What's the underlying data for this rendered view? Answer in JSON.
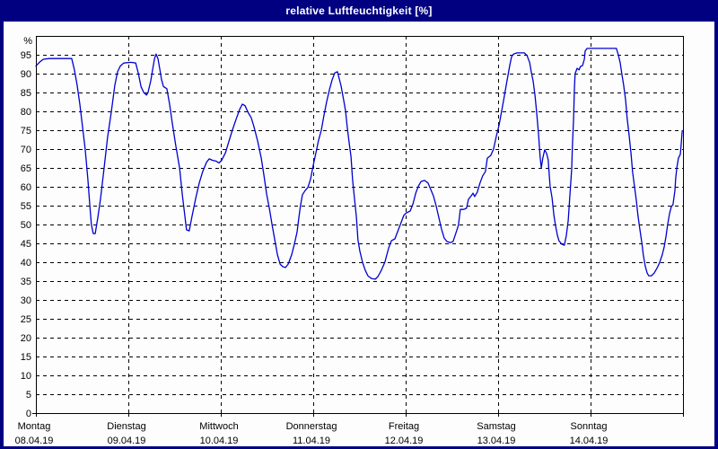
{
  "window": {
    "title": "relative Luftfeuchtigkeit [%]"
  },
  "colors": {
    "titlebar_bg": "#000080",
    "frame_border": "#000080",
    "title_text": "#ffffff",
    "plot_bg": "#fdfdfd",
    "line": "#0000d0",
    "grid": "#000000",
    "axis": "#000000",
    "label_text": "#000000"
  },
  "chart_data": {
    "type": "line",
    "title": "relative Luftfeuchtigkeit [%]",
    "ylabel": "%",
    "ylim": [
      0,
      100
    ],
    "y_ticks": [
      0,
      5,
      10,
      15,
      20,
      25,
      30,
      35,
      40,
      45,
      50,
      55,
      60,
      65,
      70,
      75,
      80,
      85,
      90,
      95
    ],
    "grid": "dashed-both-axes",
    "legend": "none",
    "x_total_hours": 168,
    "x_days": [
      {
        "name": "Montag",
        "date": "08.04.19"
      },
      {
        "name": "Dienstag",
        "date": "09.04.19"
      },
      {
        "name": "Mittwoch",
        "date": "10.04.19"
      },
      {
        "name": "Donnerstag",
        "date": "11.04.19"
      },
      {
        "name": "Freitag",
        "date": "12.04.19"
      },
      {
        "name": "Samstag",
        "date": "13.04.19"
      },
      {
        "name": "Sonntag",
        "date": "14.04.19"
      }
    ],
    "series": [
      {
        "name": "relative Luftfeuchtigkeit",
        "unit": "%",
        "points": [
          [
            0.0,
            92
          ],
          [
            0.9,
            93
          ],
          [
            1.9,
            93.8
          ],
          [
            3.5,
            94
          ],
          [
            9.3,
            94
          ],
          [
            10.0,
            91
          ],
          [
            10.7,
            87
          ],
          [
            11.4,
            82
          ],
          [
            12.1,
            76
          ],
          [
            12.8,
            70
          ],
          [
            13.5,
            62
          ],
          [
            14.0,
            55
          ],
          [
            14.4,
            50
          ],
          [
            14.9,
            47.6
          ],
          [
            15.4,
            47.6
          ],
          [
            16.1,
            52
          ],
          [
            16.8,
            57
          ],
          [
            17.7,
            65
          ],
          [
            18.6,
            73
          ],
          [
            19.6,
            80
          ],
          [
            20.5,
            87
          ],
          [
            21.2,
            90.5
          ],
          [
            21.9,
            92
          ],
          [
            22.8,
            92.8
          ],
          [
            24.7,
            93
          ],
          [
            25.9,
            92.8
          ],
          [
            26.6,
            90
          ],
          [
            27.3,
            86.5
          ],
          [
            28.0,
            85
          ],
          [
            28.7,
            84.3
          ],
          [
            29.1,
            85
          ],
          [
            29.8,
            88
          ],
          [
            30.3,
            91
          ],
          [
            30.8,
            94
          ],
          [
            31.2,
            95.2
          ],
          [
            31.7,
            94
          ],
          [
            32.2,
            91
          ],
          [
            32.6,
            88.5
          ],
          [
            33.1,
            86.6
          ],
          [
            34.0,
            86
          ],
          [
            34.7,
            82
          ],
          [
            35.4,
            77
          ],
          [
            36.3,
            71
          ],
          [
            37.3,
            65
          ],
          [
            38.0,
            58
          ],
          [
            38.7,
            52
          ],
          [
            39.1,
            48.6
          ],
          [
            39.8,
            48.3
          ],
          [
            40.5,
            52
          ],
          [
            41.5,
            57
          ],
          [
            42.4,
            61
          ],
          [
            43.3,
            64
          ],
          [
            44.3,
            66.5
          ],
          [
            45.0,
            67.4
          ],
          [
            45.9,
            67
          ],
          [
            46.8,
            66.8
          ],
          [
            47.5,
            66.3
          ],
          [
            48.2,
            67
          ],
          [
            49.2,
            69
          ],
          [
            50.1,
            72
          ],
          [
            51.0,
            75
          ],
          [
            52.0,
            78
          ],
          [
            52.9,
            80.5
          ],
          [
            53.6,
            81.9
          ],
          [
            54.3,
            81.5
          ],
          [
            55.2,
            79.5
          ],
          [
            55.9,
            78.3
          ],
          [
            56.6,
            76
          ],
          [
            57.6,
            72
          ],
          [
            58.5,
            67.6
          ],
          [
            59.2,
            63
          ],
          [
            59.9,
            58
          ],
          [
            60.6,
            54.3
          ],
          [
            61.3,
            50
          ],
          [
            62.0,
            46
          ],
          [
            62.7,
            42
          ],
          [
            63.4,
            39.5
          ],
          [
            64.1,
            38.8
          ],
          [
            64.8,
            38.6
          ],
          [
            65.5,
            39.5
          ],
          [
            66.4,
            42
          ],
          [
            67.1,
            44.8
          ],
          [
            67.8,
            48
          ],
          [
            68.3,
            52
          ],
          [
            68.7,
            55
          ],
          [
            69.2,
            57.9
          ],
          [
            69.9,
            59
          ],
          [
            70.6,
            59.8
          ],
          [
            71.3,
            62
          ],
          [
            72.0,
            65.7
          ],
          [
            72.7,
            69
          ],
          [
            73.4,
            72.4
          ],
          [
            74.1,
            75
          ],
          [
            74.8,
            79
          ],
          [
            75.5,
            82.6
          ],
          [
            76.2,
            85.7
          ],
          [
            76.9,
            88.3
          ],
          [
            77.6,
            90.2
          ],
          [
            78.3,
            90.5
          ],
          [
            78.7,
            88.8
          ],
          [
            79.2,
            86.9
          ],
          [
            79.9,
            83
          ],
          [
            80.4,
            80
          ],
          [
            80.8,
            76
          ],
          [
            81.3,
            71.9
          ],
          [
            81.8,
            68
          ],
          [
            82.2,
            62
          ],
          [
            82.7,
            57
          ],
          [
            83.2,
            52
          ],
          [
            83.6,
            46
          ],
          [
            84.1,
            43
          ],
          [
            84.8,
            40
          ],
          [
            85.5,
            37.9
          ],
          [
            86.2,
            36.4
          ],
          [
            87.1,
            35.7
          ],
          [
            88.1,
            35.5
          ],
          [
            88.8,
            36.2
          ],
          [
            89.7,
            37.9
          ],
          [
            90.6,
            40
          ],
          [
            91.6,
            43.8
          ],
          [
            92.3,
            45.7
          ],
          [
            93.2,
            46.2
          ],
          [
            93.9,
            48.1
          ],
          [
            94.8,
            50.5
          ],
          [
            95.5,
            52.4
          ],
          [
            96.2,
            53.1
          ],
          [
            97.2,
            53.6
          ],
          [
            97.9,
            55.5
          ],
          [
            98.6,
            58.3
          ],
          [
            99.3,
            60.2
          ],
          [
            100.0,
            61.4
          ],
          [
            100.9,
            61.7
          ],
          [
            101.8,
            61
          ],
          [
            102.5,
            59.3
          ],
          [
            103.2,
            57.6
          ],
          [
            103.9,
            55
          ],
          [
            104.6,
            51.9
          ],
          [
            105.3,
            48.8
          ],
          [
            106.0,
            46.4
          ],
          [
            106.7,
            45.5
          ],
          [
            107.6,
            45.2
          ],
          [
            108.3,
            45.5
          ],
          [
            109.0,
            47.6
          ],
          [
            109.7,
            49.8
          ],
          [
            110.2,
            54
          ],
          [
            111.1,
            54
          ],
          [
            111.8,
            54.3
          ],
          [
            112.3,
            56.7
          ],
          [
            113.0,
            57.6
          ],
          [
            113.5,
            58.3
          ],
          [
            113.9,
            57.4
          ],
          [
            114.6,
            58.6
          ],
          [
            115.3,
            61
          ],
          [
            116.0,
            62.9
          ],
          [
            116.7,
            64
          ],
          [
            117.2,
            67.6
          ],
          [
            118.1,
            68.3
          ],
          [
            118.8,
            70
          ],
          [
            119.5,
            73.3
          ],
          [
            120.2,
            76.2
          ],
          [
            120.9,
            80
          ],
          [
            121.6,
            84
          ],
          [
            122.3,
            88.1
          ],
          [
            123.0,
            92.1
          ],
          [
            123.5,
            94.5
          ],
          [
            124.0,
            95.2
          ],
          [
            124.9,
            95.5
          ],
          [
            126.8,
            95.5
          ],
          [
            127.5,
            94.8
          ],
          [
            128.2,
            92.9
          ],
          [
            128.6,
            90.5
          ],
          [
            129.1,
            87.9
          ],
          [
            129.6,
            84
          ],
          [
            130.0,
            79.8
          ],
          [
            130.5,
            73.8
          ],
          [
            130.9,
            67.9
          ],
          [
            131.2,
            65
          ],
          [
            131.6,
            67.6
          ],
          [
            132.1,
            69.8
          ],
          [
            132.6,
            68.8
          ],
          [
            133.0,
            67.1
          ],
          [
            133.5,
            60.2
          ],
          [
            134.0,
            57.1
          ],
          [
            134.5,
            52.4
          ],
          [
            134.9,
            49.8
          ],
          [
            135.4,
            47.1
          ],
          [
            135.8,
            45.7
          ],
          [
            136.5,
            44.8
          ],
          [
            137.2,
            44.5
          ],
          [
            137.7,
            47.1
          ],
          [
            138.2,
            51
          ],
          [
            138.6,
            57.1
          ],
          [
            139.1,
            64.8
          ],
          [
            139.3,
            71
          ],
          [
            139.6,
            78.1
          ],
          [
            139.8,
            86
          ],
          [
            140.0,
            90
          ],
          [
            140.5,
            91.4
          ],
          [
            141.0,
            91
          ],
          [
            141.4,
            91.9
          ],
          [
            141.9,
            92.1
          ],
          [
            142.4,
            93.8
          ],
          [
            142.6,
            96
          ],
          [
            143.1,
            96.7
          ],
          [
            150.7,
            96.7
          ],
          [
            151.2,
            95
          ],
          [
            151.7,
            92.9
          ],
          [
            152.1,
            90
          ],
          [
            152.6,
            86.9
          ],
          [
            153.1,
            82.9
          ],
          [
            153.5,
            78.1
          ],
          [
            154.0,
            73.8
          ],
          [
            154.5,
            68.8
          ],
          [
            154.9,
            64
          ],
          [
            155.4,
            60.2
          ],
          [
            155.9,
            56.2
          ],
          [
            156.3,
            52.4
          ],
          [
            156.8,
            48.8
          ],
          [
            157.3,
            45.2
          ],
          [
            157.7,
            41.9
          ],
          [
            158.2,
            39
          ],
          [
            158.7,
            37.1
          ],
          [
            159.1,
            36.4
          ],
          [
            159.8,
            36.4
          ],
          [
            160.5,
            37.1
          ],
          [
            161.2,
            38.3
          ],
          [
            161.9,
            39.8
          ],
          [
            162.6,
            41.9
          ],
          [
            163.1,
            44
          ],
          [
            163.6,
            46.9
          ],
          [
            164.0,
            49.8
          ],
          [
            164.5,
            52.9
          ],
          [
            165.0,
            54.8
          ],
          [
            165.4,
            55.2
          ],
          [
            165.9,
            59
          ],
          [
            166.1,
            62.1
          ],
          [
            166.4,
            65
          ],
          [
            166.8,
            67.6
          ],
          [
            167.3,
            68.6
          ],
          [
            167.5,
            71
          ],
          [
            167.8,
            74.8
          ]
        ]
      }
    ]
  }
}
